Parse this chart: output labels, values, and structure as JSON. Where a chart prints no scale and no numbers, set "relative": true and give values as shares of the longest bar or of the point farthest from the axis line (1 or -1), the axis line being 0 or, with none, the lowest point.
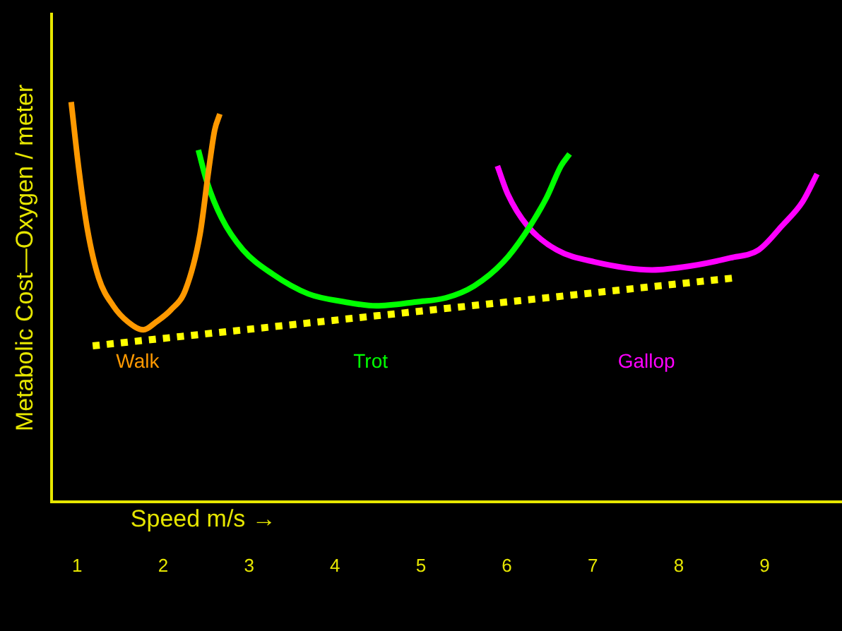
{
  "chart_data": {
    "type": "line",
    "xlabel": "Speed m/s →",
    "ylabel": "Metabolic Cost—Oxygen / meter",
    "relative": true,
    "xlim": [
      0.7,
      9.9
    ],
    "xticks": [
      1,
      2,
      3,
      4,
      5,
      6,
      7,
      8,
      9
    ],
    "grid": false,
    "legend": false,
    "marker": "none",
    "series": [
      {
        "name": "Walk",
        "color": "#ff9900",
        "x": [
          0.93,
          1.02,
          1.12,
          1.25,
          1.42,
          1.59,
          1.77,
          1.92,
          2.09,
          2.26,
          2.43,
          2.53,
          2.6,
          2.66
        ],
        "values": [
          1.0,
          0.83,
          0.68,
          0.56,
          0.49,
          0.45,
          0.43,
          0.45,
          0.48,
          0.53,
          0.67,
          0.83,
          0.93,
          0.97
        ]
      },
      {
        "name": "Trot",
        "color": "#00ff00",
        "x": [
          2.41,
          2.51,
          2.68,
          2.93,
          3.27,
          3.69,
          4.11,
          4.48,
          4.95,
          5.29,
          5.62,
          5.96,
          6.21,
          6.46,
          6.63,
          6.73
        ],
        "values": [
          0.88,
          0.8,
          0.71,
          0.63,
          0.57,
          0.52,
          0.5,
          0.49,
          0.5,
          0.51,
          0.54,
          0.6,
          0.67,
          0.76,
          0.84,
          0.87
        ]
      },
      {
        "name": "Gallop",
        "color": "#ff00ff",
        "x": [
          5.89,
          6.01,
          6.24,
          6.58,
          7.02,
          7.69,
          8.14,
          8.6,
          8.93,
          9.2,
          9.44,
          9.61
        ],
        "values": [
          0.84,
          0.77,
          0.69,
          0.63,
          0.6,
          0.58,
          0.59,
          0.61,
          0.63,
          0.69,
          0.75,
          0.82
        ]
      },
      {
        "color": "#ffff00",
        "line_style": "dotted",
        "x": [
          1.18,
          8.65
        ],
        "values": [
          0.39,
          0.56
        ]
      }
    ]
  }
}
